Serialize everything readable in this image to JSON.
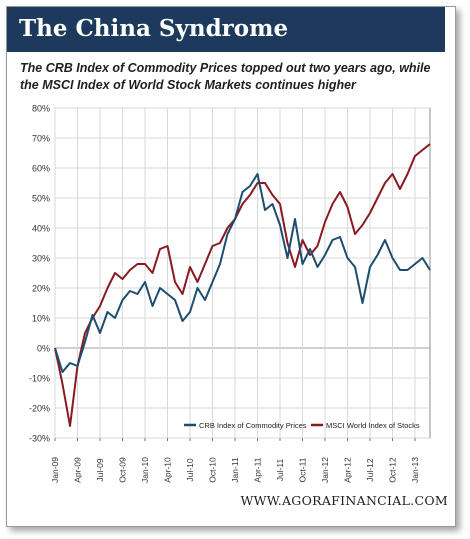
{
  "header": {
    "title": "The China Syndrome",
    "subtitle": "The CRB Index of Commodity Prices topped out two years ago, while the MSCI Index of World Stock Markets continues higher"
  },
  "footer": {
    "source": "WWW.AGORAFINANCIAL.COM"
  },
  "colors": {
    "banner": "#1d3a5c",
    "crb": "#1d4e6e",
    "msci": "#8a1a22"
  },
  "chart_data": {
    "type": "line",
    "title": "",
    "xlabel": "",
    "ylabel": "",
    "x_start": "Jan-09",
    "x_end": "Mar-13",
    "ylim": [
      -30,
      80
    ],
    "y_ticks": [
      -30,
      -20,
      -10,
      0,
      10,
      20,
      30,
      40,
      50,
      60,
      70,
      80
    ],
    "y_tick_labels": [
      "-30%",
      "-20%",
      "-10%",
      "0%",
      "10%",
      "20%",
      "30%",
      "40%",
      "50%",
      "60%",
      "70%",
      "80%"
    ],
    "x_tick_labels": [
      "Jan-09",
      "Apr-09",
      "Jul-09",
      "Oct-09",
      "Jan-10",
      "Apr-10",
      "Jul-10",
      "Oct-10",
      "Jan-11",
      "Apr-11",
      "Jul-11",
      "Oct-11",
      "Jan-12",
      "Apr-12",
      "Jul-12",
      "Oct-12",
      "Jan-13"
    ],
    "grid": true,
    "legend_position": "bottom-right",
    "series": [
      {
        "name": "CRB Index of Commodity Prices",
        "color": "#1d4e6e",
        "points": [
          [
            "Jan-09",
            0
          ],
          [
            "Feb-09",
            -8
          ],
          [
            "Mar-09",
            -5
          ],
          [
            "Apr-09",
            -6
          ],
          [
            "May-09",
            2
          ],
          [
            "Jun-09",
            11
          ],
          [
            "Jul-09",
            5
          ],
          [
            "Aug-09",
            12
          ],
          [
            "Sep-09",
            10
          ],
          [
            "Oct-09",
            16
          ],
          [
            "Nov-09",
            19
          ],
          [
            "Dec-09",
            18
          ],
          [
            "Jan-10",
            22
          ],
          [
            "Feb-10",
            14
          ],
          [
            "Mar-10",
            20
          ],
          [
            "Apr-10",
            18
          ],
          [
            "May-10",
            16
          ],
          [
            "Jun-10",
            9
          ],
          [
            "Jul-10",
            12
          ],
          [
            "Aug-10",
            20
          ],
          [
            "Sep-10",
            16
          ],
          [
            "Oct-10",
            22
          ],
          [
            "Nov-10",
            28
          ],
          [
            "Dec-10",
            38
          ],
          [
            "Jan-11",
            43
          ],
          [
            "Feb-11",
            52
          ],
          [
            "Mar-11",
            54
          ],
          [
            "Apr-11",
            58
          ],
          [
            "May-11",
            46
          ],
          [
            "Jun-11",
            48
          ],
          [
            "Jul-11",
            41
          ],
          [
            "Aug-11",
            30
          ],
          [
            "Sep-11",
            43
          ],
          [
            "Oct-11",
            28
          ],
          [
            "Nov-11",
            33
          ],
          [
            "Dec-11",
            27
          ],
          [
            "Jan-12",
            31
          ],
          [
            "Feb-12",
            36
          ],
          [
            "Mar-12",
            37
          ],
          [
            "Apr-12",
            30
          ],
          [
            "May-12",
            27
          ],
          [
            "Jun-12",
            15
          ],
          [
            "Jul-12",
            27
          ],
          [
            "Aug-12",
            31
          ],
          [
            "Sep-12",
            36
          ],
          [
            "Oct-12",
            30
          ],
          [
            "Nov-12",
            26
          ],
          [
            "Dec-12",
            26
          ],
          [
            "Jan-13",
            28
          ],
          [
            "Feb-13",
            30
          ],
          [
            "Mar-13",
            26
          ]
        ]
      },
      {
        "name": "MSCI World Index of Stocks",
        "color": "#8a1a22",
        "points": [
          [
            "Jan-09",
            0
          ],
          [
            "Feb-09",
            -12
          ],
          [
            "Mar-09",
            -26
          ],
          [
            "Apr-09",
            -6
          ],
          [
            "May-09",
            5
          ],
          [
            "Jun-09",
            10
          ],
          [
            "Jul-09",
            14
          ],
          [
            "Aug-09",
            20
          ],
          [
            "Sep-09",
            25
          ],
          [
            "Oct-09",
            23
          ],
          [
            "Nov-09",
            26
          ],
          [
            "Dec-09",
            28
          ],
          [
            "Jan-10",
            28
          ],
          [
            "Feb-10",
            25
          ],
          [
            "Mar-10",
            33
          ],
          [
            "Apr-10",
            34
          ],
          [
            "May-10",
            22
          ],
          [
            "Jun-10",
            18
          ],
          [
            "Jul-10",
            27
          ],
          [
            "Aug-10",
            22
          ],
          [
            "Sep-10",
            28
          ],
          [
            "Oct-10",
            34
          ],
          [
            "Nov-10",
            35
          ],
          [
            "Dec-10",
            40
          ],
          [
            "Jan-11",
            43
          ],
          [
            "Feb-11",
            48
          ],
          [
            "Mar-11",
            51
          ],
          [
            "Apr-11",
            55
          ],
          [
            "May-11",
            55
          ],
          [
            "Jun-11",
            51
          ],
          [
            "Jul-11",
            48
          ],
          [
            "Aug-11",
            35
          ],
          [
            "Sep-11",
            27
          ],
          [
            "Oct-11",
            36
          ],
          [
            "Nov-11",
            31
          ],
          [
            "Dec-11",
            34
          ],
          [
            "Jan-12",
            42
          ],
          [
            "Feb-12",
            48
          ],
          [
            "Mar-12",
            52
          ],
          [
            "Apr-12",
            47
          ],
          [
            "May-12",
            38
          ],
          [
            "Jun-12",
            41
          ],
          [
            "Jul-12",
            45
          ],
          [
            "Aug-12",
            50
          ],
          [
            "Sep-12",
            55
          ],
          [
            "Oct-12",
            58
          ],
          [
            "Nov-12",
            53
          ],
          [
            "Dec-12",
            58
          ],
          [
            "Jan-13",
            64
          ],
          [
            "Feb-13",
            66
          ],
          [
            "Mar-13",
            68
          ]
        ]
      }
    ]
  }
}
